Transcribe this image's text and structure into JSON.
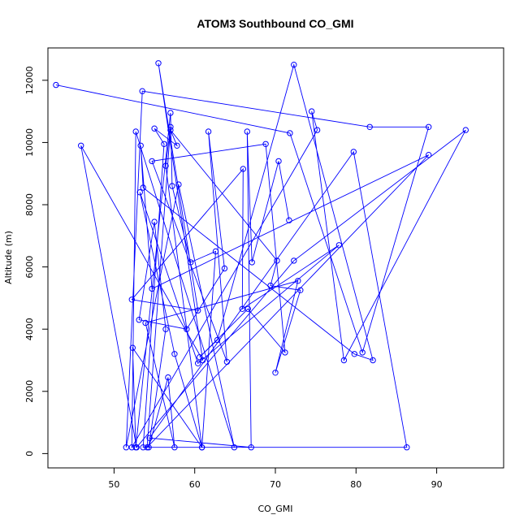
{
  "chart_data": {
    "type": "line",
    "title": "ATOM3 Southbound CO_GMI",
    "xlabel": "CO_GMI",
    "ylabel": "Altitude (m)",
    "xlim": [
      41.8,
      98.3
    ],
    "ylim": [
      -460,
      13040
    ],
    "x_ticks": [
      50,
      60,
      70,
      80,
      90
    ],
    "y_ticks": [
      0,
      2000,
      4000,
      6000,
      8000,
      10000,
      12000
    ],
    "grid": false,
    "legend": "none",
    "series": [
      {
        "color": "#0000ff",
        "marker": "open-circle",
        "points": [
          [
            42.8,
            11850
          ],
          [
            71.8,
            10300
          ],
          [
            80.8,
            3250
          ],
          [
            89.0,
            10500
          ],
          [
            81.7,
            10500
          ],
          [
            53.5,
            11650
          ],
          [
            51.5,
            200
          ],
          [
            58.0,
            8650
          ],
          [
            64.9,
            200
          ],
          [
            52.7,
            10350
          ],
          [
            52.2,
            200
          ],
          [
            75.2,
            10400
          ],
          [
            74.5,
            11000
          ],
          [
            78.5,
            3000
          ],
          [
            93.6,
            10400
          ],
          [
            72.3,
            6200
          ],
          [
            52.8,
            200
          ],
          [
            45.9,
            9900
          ],
          [
            61.0,
            3000
          ],
          [
            55.5,
            12550
          ],
          [
            60.4,
            4600
          ],
          [
            52.2,
            4950
          ],
          [
            66.0,
            9150
          ],
          [
            65.9,
            4650
          ],
          [
            77.9,
            6700
          ],
          [
            60.4,
            2900
          ],
          [
            53.2,
            8400
          ],
          [
            57.5,
            3200
          ],
          [
            60.9,
            200
          ],
          [
            52.3,
            3400
          ],
          [
            52.7,
            200
          ],
          [
            57.0,
            10950
          ],
          [
            57.2,
            8600
          ],
          [
            59.5,
            6150
          ],
          [
            62.6,
            6500
          ],
          [
            60.9,
            200
          ],
          [
            56.4,
            9250
          ],
          [
            57.0,
            10500
          ],
          [
            54.1,
            200
          ],
          [
            89.0,
            9600
          ],
          [
            54.7,
            5300
          ],
          [
            53.3,
            9900
          ],
          [
            53.6,
            8550
          ],
          [
            79.8,
            3200
          ],
          [
            82.1,
            3000
          ],
          [
            72.3,
            12500
          ],
          [
            62.8,
            3650
          ],
          [
            60.6,
            3100
          ],
          [
            66.6,
            4650
          ],
          [
            71.2,
            3250
          ],
          [
            68.8,
            9950
          ],
          [
            54.7,
            9400
          ],
          [
            64.0,
            2950
          ],
          [
            61.7,
            10350
          ],
          [
            63.7,
            5950
          ],
          [
            59.0,
            4000
          ],
          [
            53.1,
            4300
          ],
          [
            55.0,
            7450
          ],
          [
            56.4,
            4000
          ],
          [
            54.3,
            200
          ],
          [
            56.7,
            2450
          ],
          [
            57.5,
            200
          ],
          [
            53.9,
            4200
          ],
          [
            72.8,
            5550
          ],
          [
            70.0,
            2600
          ],
          [
            73.1,
            5250
          ],
          [
            69.4,
            5400
          ],
          [
            70.2,
            6200
          ],
          [
            57.0,
            10400
          ],
          [
            57.8,
            9900
          ],
          [
            55.0,
            10450
          ],
          [
            56.2,
            9950
          ],
          [
            53.6,
            200
          ],
          [
            86.3,
            200
          ],
          [
            79.7,
            9700
          ],
          [
            54.4,
            500
          ],
          [
            67.0,
            200
          ],
          [
            66.5,
            10350
          ],
          [
            67.1,
            6150
          ],
          [
            70.4,
            9400
          ],
          [
            71.7,
            7500
          ]
        ]
      }
    ]
  }
}
